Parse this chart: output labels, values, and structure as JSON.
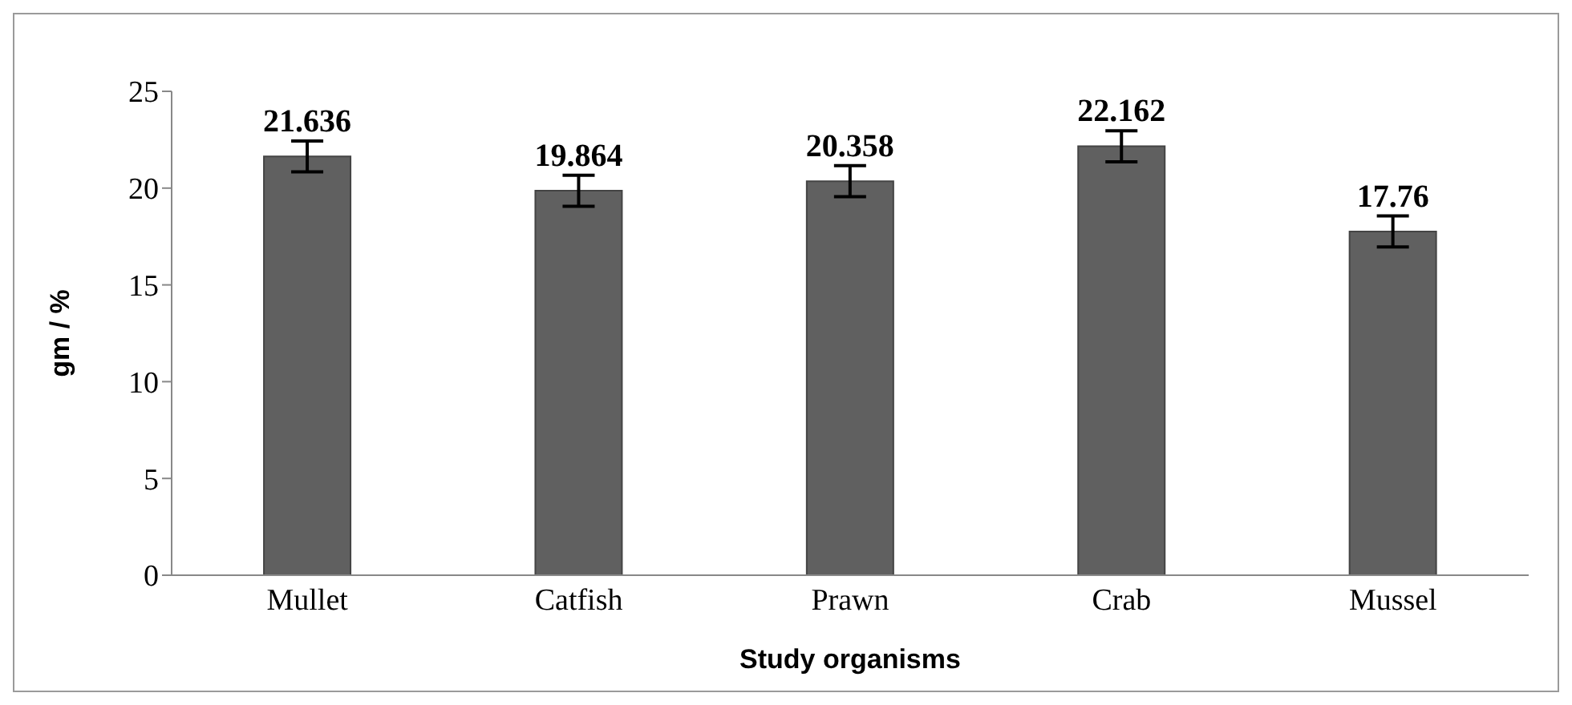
{
  "chart_data": {
    "type": "bar",
    "xlabel": "Study organisms",
    "ylabel": "gm / %",
    "categories": [
      "Mullet",
      "Catfish",
      "Prawn",
      "Crab",
      "Mussel"
    ],
    "values": [
      21.636,
      19.864,
      20.358,
      22.162,
      17.76
    ],
    "errors": [
      0.8,
      0.8,
      0.8,
      0.8,
      0.8
    ],
    "color": "#606060",
    "ylim": [
      0,
      25
    ],
    "yticks": [
      0,
      5,
      10,
      15,
      20,
      25
    ],
    "grid": false,
    "data_labels": true
  }
}
